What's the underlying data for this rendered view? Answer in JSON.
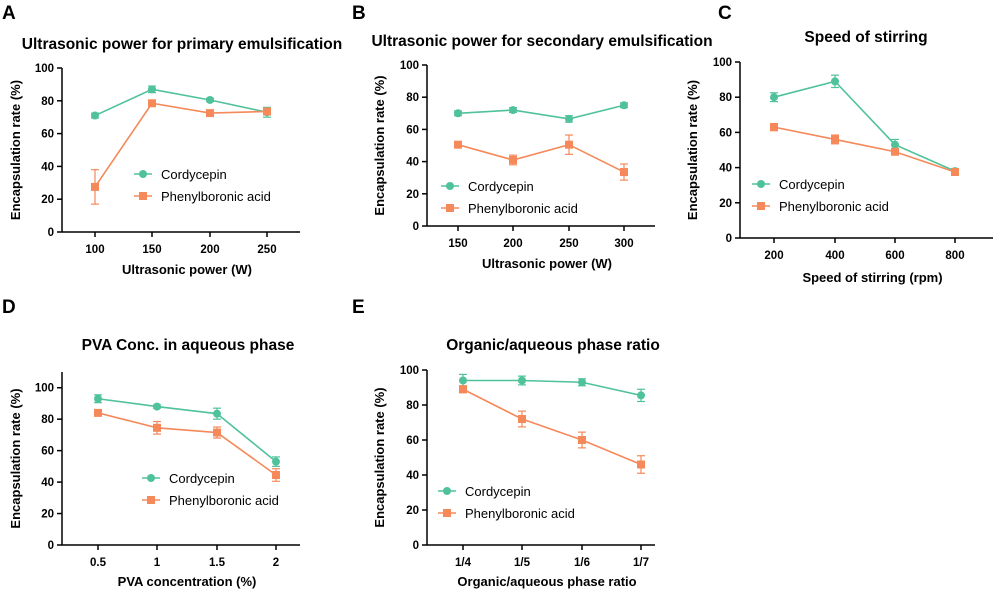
{
  "colors": {
    "cordycepin": "#4fc29a",
    "phenylboronic": "#f5895a"
  },
  "chart_data": [
    {
      "panel": "A",
      "type": "line",
      "title": "Ultrasonic power for primary emulsification",
      "xlabel": "Ultrasonic power (W)",
      "ylabel": "Encapsulation rate (%)",
      "categories": [
        "100",
        "150",
        "200",
        "250"
      ],
      "ylim": [
        0,
        100
      ],
      "yticks": [
        "0",
        "20",
        "40",
        "60",
        "80",
        "100"
      ],
      "series": [
        {
          "name": "Cordycepin",
          "marker": "circle",
          "values": [
            71,
            87,
            80.5,
            73
          ],
          "errors": [
            1.5,
            2,
            1,
            3
          ]
        },
        {
          "name": "Phenylboronic acid",
          "marker": "square",
          "values": [
            27.5,
            78.5,
            72.5,
            73.5
          ],
          "errors": [
            10.5,
            1,
            1,
            2
          ]
        }
      ]
    },
    {
      "panel": "B",
      "type": "line",
      "title": "Ultrasonic power for secondary emulsification",
      "xlabel": "Ultrasonic power (W)",
      "ylabel": "Encapsulation rate (%)",
      "categories": [
        "150",
        "200",
        "250",
        "300"
      ],
      "ylim": [
        0,
        100
      ],
      "yticks": [
        "0",
        "20",
        "40",
        "60",
        "80",
        "100"
      ],
      "series": [
        {
          "name": "Cordycepin",
          "marker": "circle",
          "values": [
            70,
            72,
            66.5,
            75
          ],
          "errors": [
            1.5,
            1.5,
            2,
            1.5
          ]
        },
        {
          "name": "Phenylboronic acid",
          "marker": "square",
          "values": [
            50.5,
            41,
            50.5,
            33.5
          ],
          "errors": [
            1,
            3,
            6,
            5
          ]
        }
      ]
    },
    {
      "panel": "C",
      "type": "line",
      "title": "Speed of stirring",
      "xlabel": "Speed of stirring (rpm)",
      "ylabel": "Encapsulation rate (%)",
      "categories": [
        "200",
        "400",
        "600",
        "800"
      ],
      "ylim": [
        0,
        100
      ],
      "yticks": [
        "0",
        "20",
        "40",
        "60",
        "80",
        "100"
      ],
      "series": [
        {
          "name": "Cordycepin",
          "marker": "circle",
          "values": [
            80,
            89,
            53,
            38
          ],
          "errors": [
            2.5,
            3.5,
            3,
            1.5
          ]
        },
        {
          "name": "Phenylboronic acid",
          "marker": "square",
          "values": [
            63,
            56,
            49,
            37.5
          ],
          "errors": [
            2,
            2.5,
            1.5,
            1.5
          ]
        }
      ]
    },
    {
      "panel": "D",
      "type": "line",
      "title": "PVA Conc. in aqueous phase",
      "xlabel": "PVA concentration (%)",
      "ylabel": "Encapsulation rate (%)",
      "categories": [
        "0.5",
        "1",
        "1.5",
        "2"
      ],
      "ylim": [
        0,
        110
      ],
      "yticks": [
        "0",
        "20",
        "40",
        "60",
        "80",
        "100"
      ],
      "series": [
        {
          "name": "Cordycepin",
          "marker": "circle",
          "values": [
            93,
            88,
            83.5,
            53
          ],
          "errors": [
            2.5,
            1,
            3.5,
            3
          ]
        },
        {
          "name": "Phenylboronic acid",
          "marker": "square",
          "values": [
            84,
            74.5,
            71.5,
            44.5
          ],
          "errors": [
            1.5,
            4,
            3.5,
            4
          ]
        }
      ]
    },
    {
      "panel": "E",
      "type": "line",
      "title": "Organic/aqueous phase ratio",
      "xlabel": "Organic/aqueous phase ratio",
      "ylabel": "Encapsulation rate (%)",
      "categories": [
        "1/4",
        "1/5",
        "1/6",
        "1/7"
      ],
      "ylim": [
        0,
        100
      ],
      "yticks": [
        "0",
        "20",
        "40",
        "60",
        "80",
        "100"
      ],
      "series": [
        {
          "name": "Cordycepin",
          "marker": "circle",
          "values": [
            94,
            94,
            93,
            85.5
          ],
          "errors": [
            3.5,
            2.5,
            2,
            3.5
          ]
        },
        {
          "name": "Phenylboronic acid",
          "marker": "square",
          "values": [
            89,
            72,
            60,
            46
          ],
          "errors": [
            2,
            4.5,
            4.5,
            5
          ]
        }
      ]
    }
  ]
}
